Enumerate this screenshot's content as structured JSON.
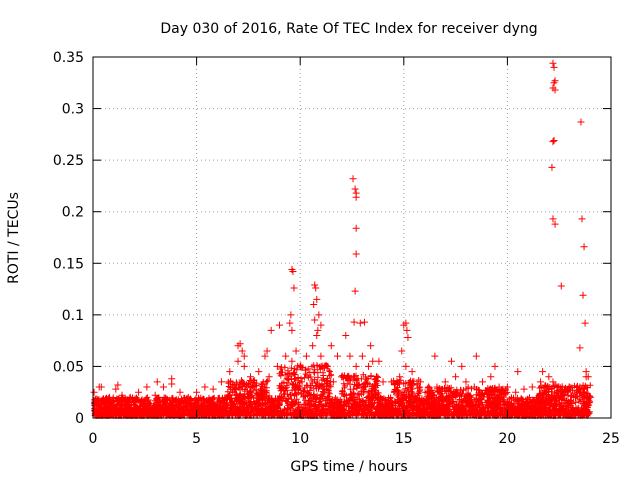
{
  "chart_data": {
    "type": "scatter",
    "title": "Day 030 of 2016, Rate Of TEC Index for receiver dyng",
    "xlabel": "GPS time / hours",
    "ylabel": "ROTI / TECUs",
    "xlim": [
      0,
      25
    ],
    "ylim": [
      0,
      0.35
    ],
    "xticks": [
      0,
      5,
      10,
      15,
      20,
      25
    ],
    "xtick_labels": [
      "0",
      "5",
      "10",
      "15",
      "20",
      "25"
    ],
    "yticks": [
      0,
      0.05,
      0.1,
      0.15,
      0.2,
      0.25,
      0.3,
      0.35
    ],
    "ytick_labels": [
      "0",
      "0.05",
      "0.1",
      "0.15",
      "0.2",
      "0.25",
      "0.3",
      "0.35"
    ],
    "grid": true,
    "marker": "+",
    "color": "#ff0000",
    "series": [
      {
        "name": "ROTI",
        "x": [
          0.05,
          0.2,
          0.4,
          0.8,
          1.1,
          1.4,
          1.8,
          2.2,
          2.6,
          3.0,
          3.4,
          3.8,
          4.2,
          4.6,
          5.0,
          5.4,
          5.8,
          6.2,
          6.6,
          7.0,
          7.3,
          7.6,
          8.0,
          8.5,
          8.9,
          9.3,
          9.6,
          9.8,
          10.0,
          10.3,
          10.6,
          10.8,
          11.0,
          11.3,
          11.6,
          12.0,
          12.4,
          12.7,
          13.0,
          13.3,
          13.7,
          14.0,
          14.4,
          14.8,
          15.1,
          15.4,
          15.8,
          16.2,
          16.6,
          17.0,
          17.5,
          18.0,
          18.4,
          18.8,
          19.2,
          19.6,
          20.0,
          20.4,
          20.8,
          21.2,
          21.6,
          22.0,
          22.2,
          22.4,
          22.8,
          23.2,
          23.5,
          23.8,
          24.0,
          9.6,
          9.65,
          9.7,
          9.55,
          9.5,
          9.6,
          10.7,
          10.75,
          10.8,
          10.65,
          10.9,
          11.0,
          10.7,
          10.85,
          12.55,
          12.65,
          12.7,
          12.7,
          12.7,
          12.7,
          12.65,
          12.6,
          12.9,
          13.1,
          13.5,
          13.4,
          15.0,
          15.1,
          15.15,
          15.2,
          14.9,
          22.2,
          22.25,
          22.3,
          22.25,
          22.2,
          22.3,
          22.25,
          22.2,
          22.15,
          22.2,
          22.3,
          23.55,
          23.6,
          23.7,
          23.65,
          23.75,
          23.8,
          23.5,
          7.0,
          7.1,
          7.2,
          7.3,
          8.6,
          8.3,
          8.4,
          9.0,
          11.5,
          11.8,
          12.2,
          13.8,
          16.5,
          17.3,
          17.8,
          18.5,
          19.4,
          20.5,
          21.7,
          22.6,
          23.9,
          3.1,
          3.8,
          1.2,
          0.3
        ],
        "y": [
          0.025,
          0.018,
          0.03,
          0.02,
          0.028,
          0.022,
          0.02,
          0.025,
          0.03,
          0.022,
          0.03,
          0.033,
          0.025,
          0.02,
          0.025,
          0.03,
          0.028,
          0.035,
          0.045,
          0.055,
          0.05,
          0.04,
          0.045,
          0.04,
          0.05,
          0.06,
          0.055,
          0.065,
          0.05,
          0.06,
          0.07,
          0.08,
          0.06,
          0.05,
          0.035,
          0.04,
          0.06,
          0.05,
          0.06,
          0.05,
          0.04,
          0.035,
          0.035,
          0.04,
          0.05,
          0.045,
          0.035,
          0.03,
          0.03,
          0.035,
          0.04,
          0.035,
          0.03,
          0.035,
          0.04,
          0.03,
          0.03,
          0.025,
          0.028,
          0.03,
          0.035,
          0.04,
          0.035,
          0.03,
          0.025,
          0.02,
          0.03,
          0.04,
          0.02,
          0.144,
          0.142,
          0.126,
          0.1,
          0.092,
          0.085,
          0.129,
          0.126,
          0.115,
          0.11,
          0.1,
          0.09,
          0.095,
          0.085,
          0.232,
          0.222,
          0.218,
          0.214,
          0.184,
          0.159,
          0.123,
          0.093,
          0.092,
          0.093,
          0.055,
          0.07,
          0.09,
          0.092,
          0.085,
          0.078,
          0.065,
          0.344,
          0.34,
          0.327,
          0.325,
          0.32,
          0.318,
          0.269,
          0.268,
          0.243,
          0.193,
          0.188,
          0.287,
          0.193,
          0.166,
          0.119,
          0.092,
          0.045,
          0.068,
          0.07,
          0.072,
          0.065,
          0.06,
          0.085,
          0.06,
          0.065,
          0.09,
          0.07,
          0.06,
          0.08,
          0.055,
          0.06,
          0.055,
          0.05,
          0.06,
          0.05,
          0.045,
          0.045,
          0.128,
          0.04,
          0.035,
          0.038,
          0.032,
          0.03
        ]
      }
    ]
  }
}
